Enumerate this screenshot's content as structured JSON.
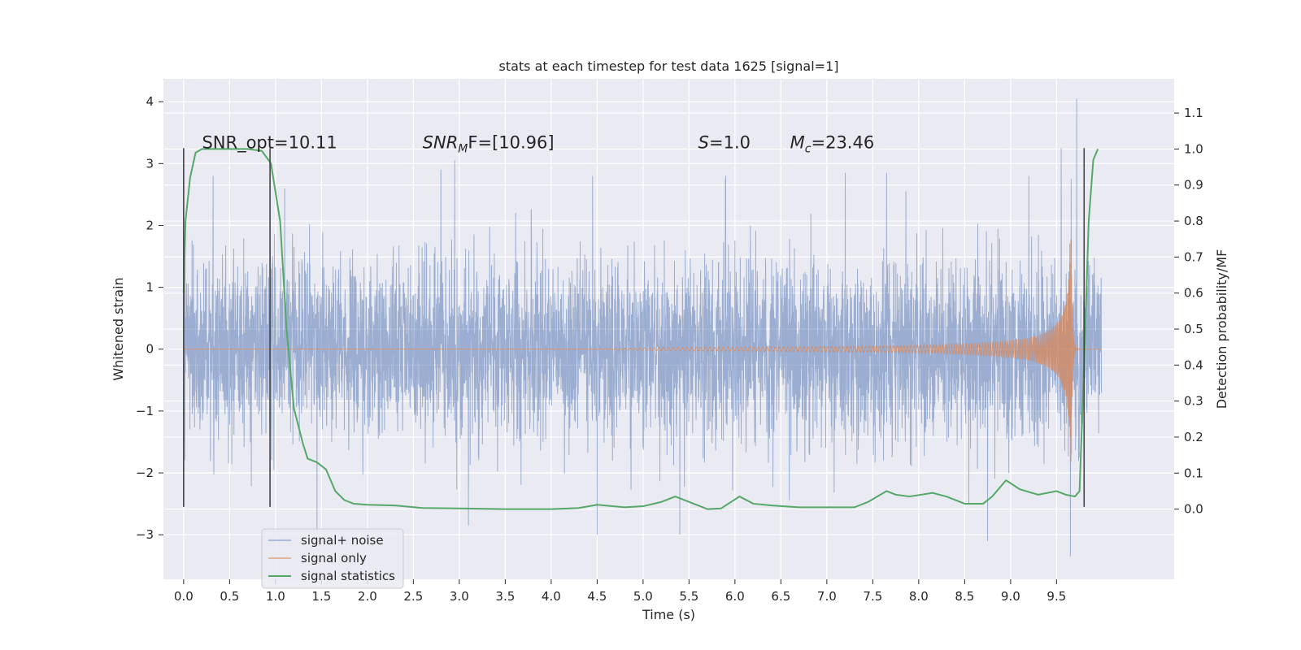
{
  "chart_data": {
    "type": "line",
    "title": "stats at each timestep for test data 1625 [signal=1]",
    "xlabel": "Time (s)",
    "ylabel_left": "Whitened strain",
    "ylabel_right": "Detection probability/MF",
    "xlim": [
      -0.22,
      10.78
    ],
    "ylim_left": [
      -3.72,
      4.37
    ],
    "ylim_right": [
      -0.195,
      1.195
    ],
    "xticks": [
      0.0,
      0.5,
      1.0,
      1.5,
      2.0,
      2.5,
      3.0,
      3.5,
      4.0,
      4.5,
      5.0,
      5.5,
      6.0,
      6.5,
      7.0,
      7.5,
      8.0,
      8.5,
      9.0,
      9.5
    ],
    "xtick_labels": [
      "0.0",
      "0.5",
      "1.0",
      "1.5",
      "2.0",
      "2.5",
      "3.0",
      "3.5",
      "4.0",
      "4.5",
      "5.0",
      "5.5",
      "6.0",
      "6.5",
      "7.0",
      "7.5",
      "8.0",
      "8.5",
      "9.0",
      "9.5"
    ],
    "yticks_left": [
      -3,
      -2,
      -1,
      0,
      1,
      2,
      3,
      4
    ],
    "ytick_labels_left": [
      "−3",
      "−2",
      "−1",
      "0",
      "1",
      "2",
      "3",
      "4"
    ],
    "yticks_right": [
      0.0,
      0.1,
      0.2,
      0.3,
      0.4,
      0.5,
      0.6,
      0.7,
      0.8,
      0.9,
      1.0,
      1.1
    ],
    "ytick_labels_right": [
      "0.0",
      "0.1",
      "0.2",
      "0.3",
      "0.4",
      "0.5",
      "0.6",
      "0.7",
      "0.8",
      "0.9",
      "1.0",
      "1.1"
    ],
    "grid": true,
    "annotations": {
      "snr_opt": "SNR_opt=10.11",
      "snr_mf_sym": "SNR",
      "snr_mf_sub": "M",
      "snr_mf_rest": "F=[10.96]",
      "s_sym": "S",
      "s_rest": "=1.0",
      "mc_sym": "M",
      "mc_sub": "c",
      "mc_rest": "=23.46"
    },
    "annotation_x": [
      0.2,
      2.6,
      5.6,
      6.6
    ],
    "annotation_y": 3.25,
    "legend": {
      "placement": "lower-left",
      "entries": [
        "signal+ noise",
        "signal only",
        "signal statistics"
      ]
    },
    "colors": {
      "signal_noise": "#4c72b0",
      "signal_only": "#dd8452",
      "statistics": "#55a868",
      "background": "#eaeaf2",
      "grid": "#ffffff",
      "vlines": "#444444"
    },
    "series": [
      {
        "name": "signal+ noise",
        "axis": "left",
        "t_range": [
          0.0,
          9.99
        ],
        "noise_std": 0.72,
        "peak_points": [
          [
            0.32,
            2.8
          ],
          [
            1.1,
            2.6
          ],
          [
            2.8,
            2.9
          ],
          [
            2.95,
            3.05
          ],
          [
            4.45,
            2.8
          ],
          [
            5.9,
            2.8
          ],
          [
            7.2,
            2.85
          ],
          [
            7.65,
            2.85
          ],
          [
            9.2,
            2.8
          ],
          [
            9.55,
            3.25
          ],
          [
            9.65,
            2.9
          ],
          [
            9.72,
            4.05
          ],
          [
            1.45,
            -2.95
          ],
          [
            3.1,
            -2.85
          ],
          [
            4.5,
            -3.0
          ],
          [
            5.4,
            -3.0
          ],
          [
            8.75,
            -3.1
          ],
          [
            9.65,
            -3.35
          ]
        ]
      },
      {
        "name": "signal only",
        "axis": "left",
        "waveform": "chirp",
        "t_merger": 9.66,
        "amp_at_merger": 2.0,
        "onset": 5.0
      },
      {
        "name": "signal statistics",
        "axis": "right",
        "x": [
          0.0,
          0.02,
          0.07,
          0.13,
          0.2,
          0.3,
          0.5,
          0.7,
          0.85,
          0.95,
          1.05,
          1.12,
          1.2,
          1.3,
          1.35,
          1.45,
          1.55,
          1.65,
          1.75,
          1.85,
          2.0,
          2.3,
          2.6,
          3.0,
          3.5,
          4.0,
          4.3,
          4.5,
          4.8,
          5.0,
          5.2,
          5.35,
          5.5,
          5.7,
          5.85,
          6.05,
          6.2,
          6.4,
          6.7,
          7.0,
          7.3,
          7.45,
          7.65,
          7.75,
          7.9,
          8.15,
          8.3,
          8.5,
          8.7,
          8.8,
          8.95,
          9.1,
          9.3,
          9.5,
          9.6,
          9.7,
          9.75,
          9.8,
          9.85,
          9.9,
          9.95
        ],
        "y": [
          0.6,
          0.8,
          0.92,
          0.99,
          1.0,
          1.0,
          1.0,
          1.0,
          0.995,
          0.96,
          0.8,
          0.5,
          0.28,
          0.18,
          0.14,
          0.13,
          0.11,
          0.05,
          0.025,
          0.015,
          0.012,
          0.01,
          0.003,
          0.002,
          0.0,
          0.0,
          0.003,
          0.012,
          0.005,
          0.008,
          0.02,
          0.035,
          0.02,
          0.0,
          0.002,
          0.035,
          0.015,
          0.01,
          0.005,
          0.005,
          0.005,
          0.02,
          0.05,
          0.04,
          0.035,
          0.045,
          0.035,
          0.015,
          0.015,
          0.035,
          0.08,
          0.055,
          0.04,
          0.05,
          0.04,
          0.035,
          0.05,
          0.4,
          0.8,
          0.97,
          1.0
        ]
      }
    ],
    "vertical_lines": [
      {
        "x": 0.0,
        "y_range": [
          -2.55,
          3.25
        ]
      },
      {
        "x": 0.94,
        "y_range": [
          -2.55,
          3.25
        ]
      },
      {
        "x": 9.8,
        "y_range": [
          -2.55,
          3.25
        ]
      }
    ]
  }
}
